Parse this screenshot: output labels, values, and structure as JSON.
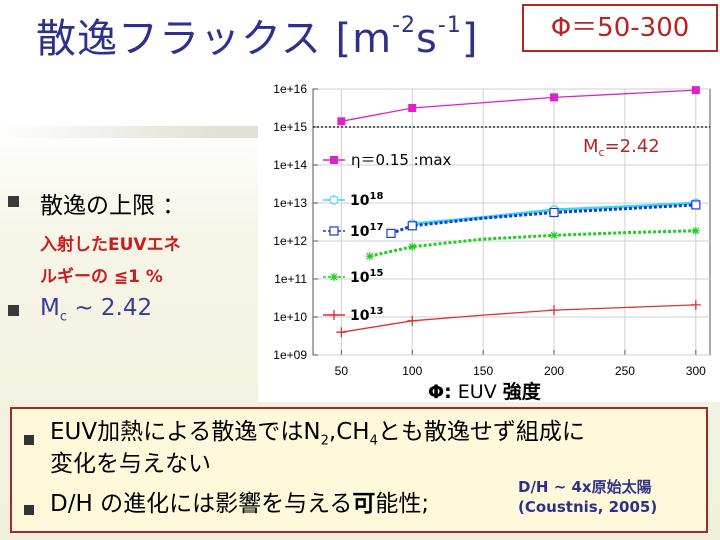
{
  "title": {
    "main": "散逸フラックス [m",
    "exp1": "-2",
    "mid": "s",
    "exp2": "-1",
    "end": "]"
  },
  "phi_box": "Φ＝50-300",
  "left": {
    "bullet1": "散逸の上限 ：",
    "bullet1_line1": "入射したEUVエネ",
    "bullet1_line2": "ルギーの ≦1 %",
    "bullet2_pre": "M",
    "bullet2_sub": "c",
    "bullet2_post": " ~ 2.42"
  },
  "x_caption": {
    "phi": "Φ:",
    "euv": " EUV ",
    "strength": "強度"
  },
  "bottom": {
    "line1_a": "EUV加熱による散逸ではN",
    "line1_sub1": "2",
    "line1_b": ",CH",
    "line1_sub2": "4",
    "line1_c": "とも散逸せず組成に",
    "line2": "変化を与えない",
    "line3_a": "D/H の進化には影響を与える",
    "line3_b": "可",
    "line3_c": "能性;",
    "note1": "D/H ~ 4x原始太陽",
    "note2": "(Coustnis, 2005)"
  },
  "chart_data": {
    "type": "line",
    "xlim": [
      30,
      310
    ],
    "ylim_log10": [
      9,
      16
    ],
    "xticks": [
      50,
      100,
      150,
      200,
      250,
      300
    ],
    "xtick_labels": [
      "50",
      "100",
      "150",
      "200",
      "250",
      "300"
    ],
    "yticks_log10": [
      9,
      10,
      11,
      12,
      13,
      14,
      15,
      16
    ],
    "ytick_labels": [
      "1e+09",
      "1e+10",
      "1e+11",
      "1e+12",
      "1e+13",
      "1e+14",
      "1e+15",
      "1e+16"
    ],
    "reference_line_log10": 15,
    "annotation": {
      "text_main": "M",
      "text_sub": "c",
      "text_post": "=2.42"
    },
    "series": [
      {
        "name": "η＝0.15 :max",
        "legend_label": "η＝0.15 :max",
        "color": "#e020c8",
        "marker": "square-filled",
        "dash": "solid",
        "x": [
          50,
          100,
          200,
          300
        ],
        "log10_y": [
          15.15,
          15.5,
          15.78,
          15.97
        ],
        "marker_x": [
          50,
          100,
          200,
          300
        ]
      },
      {
        "name": "10^18",
        "legend_base": "10",
        "legend_exp": "18",
        "color": "#40d8f0",
        "marker": "circle-open",
        "dash": "solid",
        "x": [
          100,
          150,
          200,
          250,
          300
        ],
        "log10_y": [
          12.45,
          12.62,
          12.82,
          12.9,
          13.0
        ],
        "marker_x": [
          100,
          200,
          300
        ]
      },
      {
        "name": "10^17",
        "legend_base": "10",
        "legend_exp": "17",
        "color": "#1a3ad8",
        "marker": "square-open",
        "dash": "dotted",
        "x": [
          85,
          100,
          150,
          200,
          250,
          300
        ],
        "log10_y": [
          12.2,
          12.4,
          12.6,
          12.75,
          12.85,
          12.95
        ],
        "marker_x": [
          85,
          100,
          200,
          300
        ]
      },
      {
        "name": "10^15",
        "legend_base": "10",
        "legend_exp": "15",
        "color": "#22cc22",
        "marker": "asterisk",
        "dash": "dotted",
        "x": [
          70,
          100,
          150,
          200,
          250,
          300
        ],
        "log10_y": [
          11.6,
          11.85,
          12.05,
          12.15,
          12.22,
          12.27
        ],
        "marker_x": [
          70,
          100,
          200,
          300
        ]
      },
      {
        "name": "10^13",
        "legend_base": "10",
        "legend_exp": "13",
        "color": "#e03030",
        "marker": "plus",
        "dash": "solid",
        "x": [
          50,
          100,
          150,
          200,
          250,
          300
        ],
        "log10_y": [
          9.6,
          9.9,
          10.05,
          10.18,
          10.25,
          10.32
        ],
        "marker_x": [
          50,
          100,
          200,
          300
        ]
      }
    ]
  }
}
